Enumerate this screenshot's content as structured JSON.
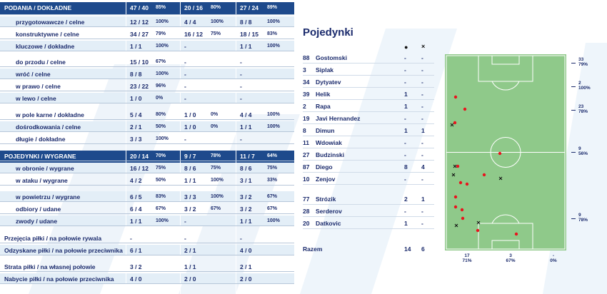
{
  "colors": {
    "header": "#1e4a8c",
    "stripe": "#e3eef7",
    "text": "#1a2a6c",
    "pitch": "#8fc98a",
    "dot_red": "#e8141e"
  },
  "table": {
    "rows": [
      {
        "type": "header",
        "label": "PODANIA / DOKŁADNE",
        "c1": "47 / 40",
        "p1": "85%",
        "c2": "20 / 16",
        "p2": "80%",
        "c3": "27 / 24",
        "p3": "89%"
      },
      {
        "type": "row",
        "indent": true,
        "label": "przygotowawcze / celne",
        "c1": "12 / 12",
        "p1": "100%",
        "c2": "4 / 4",
        "p2": "100%",
        "c3": "8 / 8",
        "p3": "100%"
      },
      {
        "type": "row",
        "indent": true,
        "label": "konstruktywne / celne",
        "c1": "34 / 27",
        "p1": "79%",
        "c2": "16 / 12",
        "p2": "75%",
        "c3": "18 / 15",
        "p3": "83%"
      },
      {
        "type": "row",
        "indent": true,
        "label": "kluczowe / dokładne",
        "c1": "1 / 1",
        "p1": "100%",
        "c2": "-",
        "p2": "",
        "c3": "1 / 1",
        "p3": "100%"
      },
      {
        "type": "row",
        "indent": true,
        "label": "do przodu / celne",
        "c1": "15 / 10",
        "p1": "67%",
        "c2": "-",
        "p2": "",
        "c3": "-",
        "p3": ""
      },
      {
        "type": "row",
        "indent": true,
        "label": "wróć / celne",
        "c1": "8 / 8",
        "p1": "100%",
        "c2": "-",
        "p2": "",
        "c3": "-",
        "p3": ""
      },
      {
        "type": "row",
        "indent": true,
        "label": "w prawo / celne",
        "c1": "23 / 22",
        "p1": "96%",
        "c2": "-",
        "p2": "",
        "c3": "-",
        "p3": ""
      },
      {
        "type": "row",
        "indent": true,
        "label": "w lewo / celne",
        "c1": "1 / 0",
        "p1": "0%",
        "c2": "-",
        "p2": "",
        "c3": "-",
        "p3": ""
      },
      {
        "type": "row",
        "indent": true,
        "label": "w pole karne / dokładne",
        "c1": "5 / 4",
        "p1": "80%",
        "c2": "1 / 0",
        "p2": "0%",
        "c3": "4 / 4",
        "p3": "100%"
      },
      {
        "type": "row",
        "indent": true,
        "label": "dośrodkowania / celne",
        "c1": "2 / 1",
        "p1": "50%",
        "c2": "1 / 0",
        "p2": "0%",
        "c3": "1 / 1",
        "p3": "100%"
      },
      {
        "type": "row",
        "indent": true,
        "label": "długie / dokładne",
        "c1": "3 / 3",
        "p1": "100%",
        "c2": "-",
        "p2": "",
        "c3": "-",
        "p3": ""
      },
      {
        "type": "header",
        "label": "POJEDYNKI / WYGRANE",
        "c1": "20 / 14",
        "p1": "70%",
        "c2": "9 / 7",
        "p2": "78%",
        "c3": "11 / 7",
        "p3": "64%"
      },
      {
        "type": "row",
        "indent": true,
        "label": "w obronie / wygrane",
        "c1": "16 / 12",
        "p1": "75%",
        "c2": "8 / 6",
        "p2": "75%",
        "c3": "8 / 6",
        "p3": "75%"
      },
      {
        "type": "row",
        "indent": true,
        "label": "w ataku / wygrane",
        "c1": "4 / 2",
        "p1": "50%",
        "c2": "1 / 1",
        "p2": "100%",
        "c3": "3 / 1",
        "p3": "33%"
      },
      {
        "type": "row",
        "indent": true,
        "label": "w powietrzu / wygrane",
        "c1": "6 / 5",
        "p1": "83%",
        "c2": "3 / 3",
        "p2": "100%",
        "c3": "3 / 2",
        "p3": "67%"
      },
      {
        "type": "row",
        "indent": true,
        "label": "odbiory / udane",
        "c1": "6 / 4",
        "p1": "67%",
        "c2": "3 / 2",
        "p2": "67%",
        "c3": "3 / 2",
        "p3": "67%"
      },
      {
        "type": "row",
        "indent": true,
        "label": "zwody / udane",
        "c1": "1 / 1",
        "p1": "100%",
        "c2": "-",
        "p2": "",
        "c3": "1 / 1",
        "p3": "100%"
      },
      {
        "type": "row",
        "indent": false,
        "label": "Przejęcia piłki / na połowie rywala",
        "c1": "-",
        "p1": "",
        "c2": "-",
        "p2": "",
        "c3": "-",
        "p3": ""
      },
      {
        "type": "row",
        "indent": false,
        "label": "Odzyskane piłki / na połowie przeciwnika",
        "c1": "6 / 1",
        "p1": "",
        "c2": "2 / 1",
        "p2": "",
        "c3": "4 / 0",
        "p3": ""
      },
      {
        "type": "row",
        "indent": false,
        "label": "Strata piłki / na własnej połowie",
        "c1": "3 / 2",
        "p1": "",
        "c2": "1 / 1",
        "p2": "",
        "c3": "2 / 1",
        "p3": ""
      },
      {
        "type": "row",
        "indent": false,
        "label": "Nabycie piłki / na połowie przeciwnika",
        "c1": "4 / 0",
        "p1": "",
        "c2": "2 / 0",
        "p2": "",
        "c3": "2 / 0",
        "p3": ""
      }
    ]
  },
  "duels": {
    "title": "Pojedynki",
    "icon_won": "dot-icon",
    "icon_lost": "cross-icon",
    "col_won_symbol": "●",
    "col_lost_symbol": "×",
    "players": [
      {
        "num": "88",
        "name": "Gostomski",
        "won": "-",
        "lost": "-"
      },
      {
        "num": "3",
        "name": "Siplak",
        "won": "-",
        "lost": "-"
      },
      {
        "num": "34",
        "name": "Dytyatev",
        "won": "-",
        "lost": "-"
      },
      {
        "num": "39",
        "name": "Helik",
        "won": "1",
        "lost": "-"
      },
      {
        "num": "2",
        "name": "Rapa",
        "won": "1",
        "lost": "-"
      },
      {
        "num": "19",
        "name": "Javi Hernandez",
        "won": "-",
        "lost": "-"
      },
      {
        "num": "8",
        "name": "Dimun",
        "won": "1",
        "lost": "1"
      },
      {
        "num": "11",
        "name": "Wdowiak",
        "won": "-",
        "lost": "-"
      },
      {
        "num": "27",
        "name": "Budzinski",
        "won": "-",
        "lost": "-"
      },
      {
        "num": "87",
        "name": "Diego",
        "won": "8",
        "lost": "4"
      },
      {
        "num": "10",
        "name": "Zenjov",
        "won": "-",
        "lost": "-"
      },
      {
        "num": "77",
        "name": "Strózik",
        "won": "2",
        "lost": "1"
      },
      {
        "num": "28",
        "name": "Serderov",
        "won": "-",
        "lost": "-"
      },
      {
        "num": "20",
        "name": "Datkovic",
        "won": "1",
        "lost": "-"
      }
    ],
    "total": {
      "name": "Razem",
      "won": "14",
      "lost": "6"
    }
  },
  "pitch": {
    "right_labels": [
      {
        "count": "33",
        "pct": "79%"
      },
      {
        "count": "2",
        "pct": "100%"
      },
      {
        "count": "23",
        "pct": "78%"
      },
      {
        "count": "9",
        "pct": "56%"
      },
      {
        "count": "9",
        "pct": "78%"
      }
    ],
    "bottom_labels": [
      {
        "count": "17",
        "pct": "71%"
      },
      {
        "count": "3",
        "pct": "67%"
      },
      {
        "count": "-",
        "pct": "0%"
      }
    ]
  }
}
